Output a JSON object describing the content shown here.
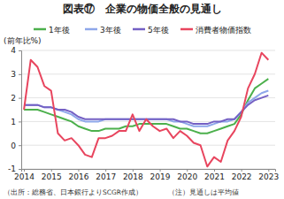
{
  "chart_data": {
    "type": "line",
    "title": "図表⑰　企業の物価全般の見通し",
    "y_label": "(前年比%)",
    "annotations": [
      "（出所：総務省、日本銀行よりSCGR作成）",
      "（注）見通しは平均値"
    ],
    "x": [
      2014,
      2014.25,
      2014.5,
      2014.75,
      2015,
      2015.25,
      2015.5,
      2015.75,
      2016,
      2016.25,
      2016.5,
      2016.75,
      2017,
      2017.25,
      2017.5,
      2017.75,
      2018,
      2018.25,
      2018.5,
      2018.75,
      2019,
      2019.25,
      2019.5,
      2019.75,
      2020,
      2020.25,
      2020.5,
      2020.75,
      2021,
      2021.25,
      2021.5,
      2021.75,
      2022,
      2022.25,
      2022.5,
      2022.75,
      2023
    ],
    "series": [
      {
        "name": "1年後",
        "color": "#4cb04c",
        "values": [
          1.5,
          1.5,
          1.5,
          1.4,
          1.3,
          1.2,
          1.1,
          1.0,
          0.8,
          0.7,
          0.6,
          0.6,
          0.7,
          0.7,
          0.7,
          0.8,
          0.8,
          0.9,
          0.9,
          0.9,
          0.9,
          0.9,
          0.8,
          0.7,
          0.7,
          0.6,
          0.5,
          0.5,
          0.6,
          0.7,
          0.8,
          0.9,
          1.3,
          1.9,
          2.4,
          2.6,
          2.8
        ]
      },
      {
        "name": "3年後",
        "color": "#8ea7ea",
        "values": [
          1.7,
          1.7,
          1.7,
          1.6,
          1.6,
          1.5,
          1.4,
          1.3,
          1.1,
          1.0,
          1.0,
          1.0,
          1.1,
          1.1,
          1.1,
          1.1,
          1.1,
          1.1,
          1.1,
          1.1,
          1.1,
          1.1,
          1.0,
          1.0,
          0.9,
          0.8,
          0.8,
          0.8,
          0.9,
          1.0,
          1.0,
          1.1,
          1.4,
          1.8,
          2.0,
          2.2,
          2.3
        ]
      },
      {
        "name": "5年後",
        "color": "#7460c4",
        "values": [
          1.7,
          1.7,
          1.7,
          1.6,
          1.6,
          1.5,
          1.5,
          1.4,
          1.2,
          1.1,
          1.1,
          1.1,
          1.1,
          1.1,
          1.1,
          1.1,
          1.1,
          1.1,
          1.1,
          1.1,
          1.1,
          1.1,
          1.1,
          1.0,
          1.0,
          0.9,
          0.9,
          0.9,
          1.0,
          1.0,
          1.1,
          1.1,
          1.4,
          1.7,
          1.9,
          2.0,
          2.1
        ]
      },
      {
        "name": "消費者物価指数",
        "color": "#e8455e",
        "values": [
          1.5,
          3.6,
          3.3,
          2.5,
          2.3,
          0.5,
          0.2,
          0.3,
          0.0,
          -0.4,
          -0.5,
          0.3,
          0.3,
          0.4,
          0.6,
          0.6,
          1.3,
          0.6,
          1.1,
          0.8,
          0.6,
          0.7,
          0.3,
          0.6,
          0.4,
          0.1,
          0.0,
          -0.9,
          -0.5,
          -0.7,
          0.2,
          0.6,
          1.2,
          2.4,
          3.0,
          3.9,
          3.6
        ]
      }
    ],
    "xlim": [
      2013.9,
      2023.25
    ],
    "xticks": [
      2014,
      2015,
      2016,
      2017,
      2018,
      2019,
      2020,
      2021,
      2022,
      2023
    ],
    "ylim": [
      -1,
      4
    ],
    "yticks": [
      -1,
      0,
      1,
      2,
      3,
      4
    ],
    "grid": true,
    "legend": "top"
  }
}
